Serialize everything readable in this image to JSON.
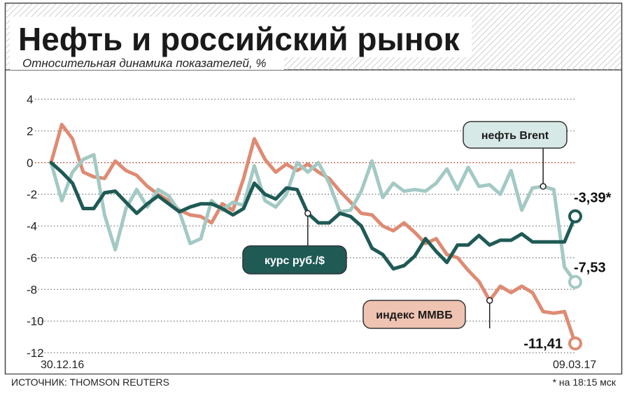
{
  "title": "Нефть и российский рынок",
  "subtitle": "Относительная динамика показателей, %",
  "source": "ИСТОЧНИК: THOMSON REUTERS",
  "footnote": "* на 18:15 мск",
  "colors": {
    "brent": "#a3c9c4",
    "rub": "#1f5a55",
    "micex": "#de8b73",
    "zero_line": "#c0392b",
    "grid": "#888888"
  },
  "chart_data": {
    "type": "line",
    "ylim": [
      -12,
      4
    ],
    "yticks": [
      4,
      2,
      0,
      -2,
      -4,
      -6,
      -8,
      -10,
      -12
    ],
    "x_start_label": "30.12.16",
    "x_end_label": "09.03.17",
    "n_points": 50,
    "series": [
      {
        "name": "нефть Brent",
        "key": "brent",
        "end_label": "-7,53",
        "values": [
          0,
          -2.4,
          -0.6,
          0.2,
          0.5,
          -3.3,
          -5.5,
          -2.9,
          -1.7,
          -2.8,
          -1.7,
          -2.1,
          -3.1,
          -5.1,
          -4.8,
          -2.4,
          -3.0,
          -2.5,
          -2.7,
          -0.2,
          -2.4,
          -2.8,
          -2.0,
          0.0,
          -0.6,
          0.0,
          -1.3,
          -3.1,
          -3.0,
          -1.8,
          0.1,
          -2.2,
          -1.3,
          -1.8,
          -1.7,
          -1.8,
          -1.3,
          -0.4,
          -1.7,
          -0.3,
          -1.5,
          -1.4,
          -2.0,
          -0.5,
          -3.0,
          -1.6,
          -1.5,
          -1.7,
          -6.6,
          -7.53
        ]
      },
      {
        "name": "курс руб./$",
        "key": "rub",
        "end_label": "-3,39*",
        "values": [
          0,
          -0.6,
          -1.3,
          -2.9,
          -2.9,
          -1.9,
          -1.8,
          -2.5,
          -3.2,
          -2.6,
          -2.1,
          -2.6,
          -3.1,
          -2.8,
          -2.6,
          -2.6,
          -2.9,
          -3.3,
          -2.9,
          -1.3,
          -2.0,
          -2.3,
          -1.6,
          -1.7,
          -3.2,
          -3.8,
          -3.8,
          -3.2,
          -3.4,
          -4.0,
          -5.4,
          -5.8,
          -6.7,
          -6.5,
          -5.9,
          -4.8,
          -5.6,
          -6.3,
          -5.2,
          -5.2,
          -4.6,
          -5.2,
          -4.9,
          -4.9,
          -4.5,
          -5.0,
          -5.0,
          -5.0,
          -5.0,
          -3.39
        ]
      },
      {
        "name": "индекс ММВБ",
        "key": "micex",
        "end_label": "-11,41",
        "values": [
          0,
          2.4,
          1.5,
          -0.6,
          -0.9,
          -1.0,
          0.1,
          -0.5,
          -0.8,
          -1.5,
          -2.0,
          -2.4,
          -3.0,
          -3.3,
          -3.4,
          -3.8,
          -2.6,
          -3.0,
          -1.0,
          1.5,
          0.2,
          -0.6,
          -0.1,
          -0.5,
          -0.1,
          -0.6,
          -1.0,
          -1.8,
          -2.5,
          -3.2,
          -3.3,
          -4.0,
          -4.3,
          -3.8,
          -4.4,
          -5.1,
          -4.8,
          -5.8,
          -6.0,
          -6.8,
          -7.5,
          -8.7,
          -7.8,
          -8.2,
          -7.8,
          -8.2,
          -9.4,
          -9.5,
          -9.4,
          -11.41
        ]
      }
    ]
  }
}
